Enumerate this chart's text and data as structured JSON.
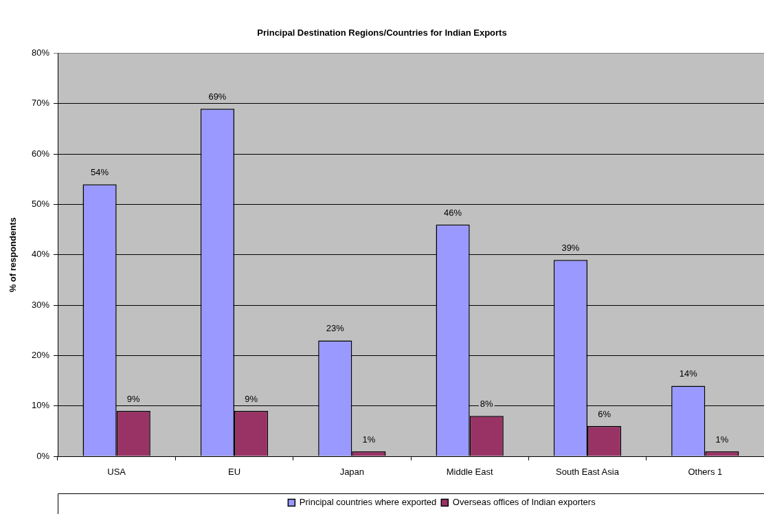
{
  "chart_data": {
    "type": "bar",
    "title": "Principal Destination Regions/Countries for Indian Exports",
    "ylabel": "% of respondents",
    "categories": [
      "USA",
      "EU",
      "Japan",
      "Middle East",
      "South East Asia",
      "Others 1"
    ],
    "series": [
      {
        "name": "Principal countries where exported",
        "color": "#9999ff",
        "values": [
          54,
          69,
          23,
          46,
          39,
          14
        ],
        "value_labels": [
          "54%",
          "69%",
          "23%",
          "46%",
          "39%",
          "14%"
        ]
      },
      {
        "name": "Overseas offices of Indian exporters",
        "color": "#993366",
        "values": [
          9,
          9,
          1,
          8,
          6,
          1
        ],
        "value_labels": [
          "9%",
          "9%",
          "1%",
          "8%",
          "6%",
          "1%"
        ]
      }
    ],
    "ylim": [
      0,
      80
    ],
    "yticks": [
      {
        "value": 0,
        "label": "0%"
      },
      {
        "value": 10,
        "label": "10%"
      },
      {
        "value": 20,
        "label": "20%"
      },
      {
        "value": 30,
        "label": "30%"
      },
      {
        "value": 40,
        "label": "40%"
      },
      {
        "value": 50,
        "label": "50%"
      },
      {
        "value": 60,
        "label": "60%"
      },
      {
        "value": 70,
        "label": "70%"
      },
      {
        "value": 80,
        "label": "80%"
      }
    ],
    "grid": "y",
    "legend": "bottom"
  }
}
